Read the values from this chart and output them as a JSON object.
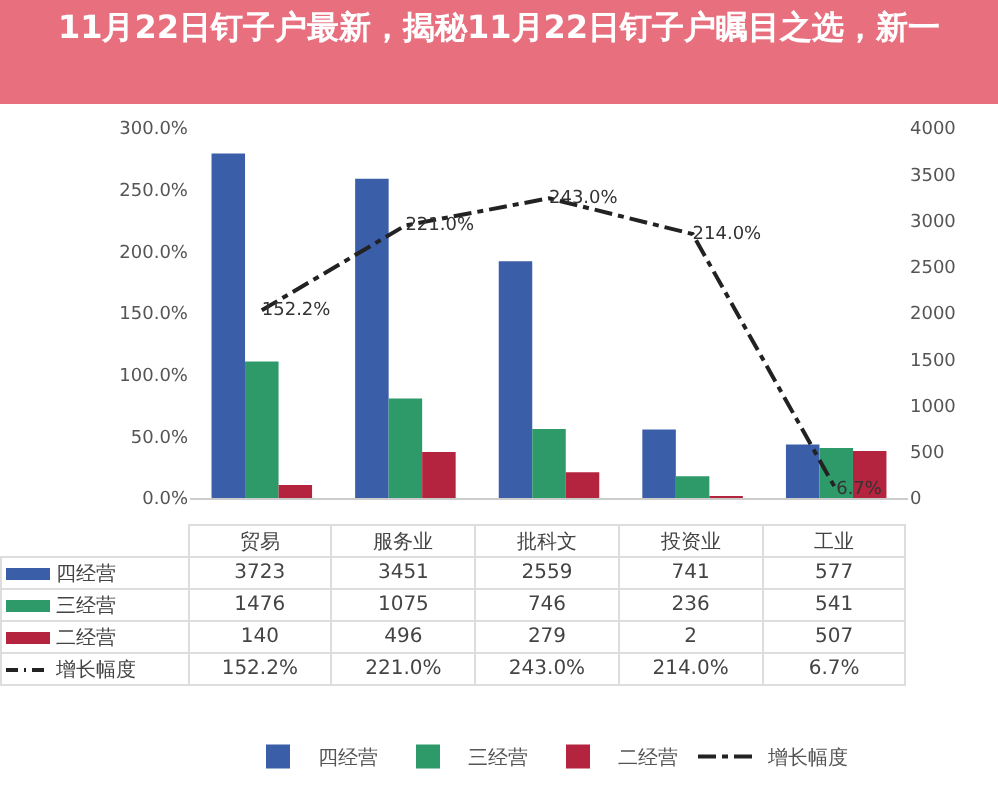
{
  "chart_data": {
    "type": "bar",
    "title": "11月22日钉子户最新，揭秘11月22日钉子户瞩目之选，新一",
    "categories": [
      "贸易",
      "服务业",
      "批科文",
      "投资业",
      "工业"
    ],
    "series": [
      {
        "name": "四经营",
        "color": "#3a5ea8",
        "axis": "y2",
        "values": [
          3723,
          3451,
          2559,
          741,
          577
        ]
      },
      {
        "name": "三经营",
        "color": "#2e9a6a",
        "axis": "y2",
        "values": [
          1476,
          1075,
          746,
          236,
          541
        ]
      },
      {
        "name": "二经营",
        "color": "#b5243f",
        "axis": "y2",
        "values": [
          140,
          496,
          279,
          2,
          507
        ]
      },
      {
        "name": "增长幅度",
        "type": "line",
        "color": "#222222",
        "line_style": "dashdot",
        "marker": "none",
        "values": [
          152.2,
          221.0,
          243.0,
          214.0,
          6.7
        ],
        "value_labels": [
          "152.2%",
          "221.0%",
          "243.0%",
          "214.0%",
          "6.7%"
        ]
      }
    ],
    "ylim": [
      0,
      300
    ],
    "yticks": [
      {
        "value": 0,
        "label": "0.0%"
      },
      {
        "value": 50,
        "label": "50.0%"
      },
      {
        "value": 100,
        "label": "100.0%"
      },
      {
        "value": 150,
        "label": "150.0%"
      },
      {
        "value": 200,
        "label": "200.0%"
      },
      {
        "value": 250,
        "label": "250.0%"
      },
      {
        "value": 300,
        "label": "300.0%"
      }
    ],
    "y2lim": [
      0,
      4000
    ],
    "y2ticks": [
      0,
      500,
      1000,
      1500,
      2000,
      2500,
      3000,
      3500,
      4000
    ],
    "data_labels": true,
    "legend": "bottom"
  }
}
